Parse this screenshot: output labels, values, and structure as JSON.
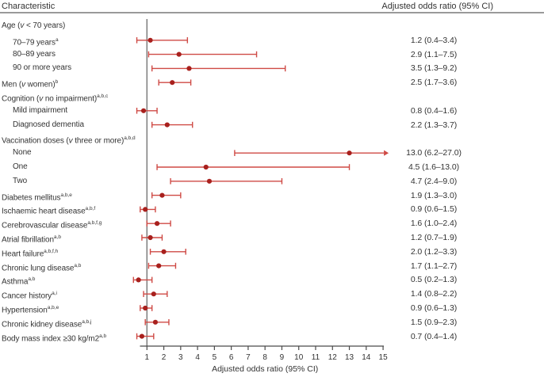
{
  "header": {
    "characteristic_label": "Characteristic",
    "odds_ratio_label": "Adjusted odds ratio (95% CI)"
  },
  "colors": {
    "ci_line": "#cf4a45",
    "point": "#a8201d",
    "reference_line": "#7d7d7d",
    "axis_line": "#4a4a4a",
    "header_rule": "#9a9a9a",
    "text": "#333333"
  },
  "chart_data": {
    "type": "forest",
    "title": "",
    "xlabel": "Adjusted odds ratio (95% CI)",
    "x_ticks": [
      1,
      2,
      3,
      4,
      5,
      6,
      7,
      8,
      9,
      10,
      11,
      12,
      13,
      14,
      15
    ],
    "axis_range": [
      1,
      15
    ],
    "reference_line_x": 1,
    "legend": "none",
    "rows": [
      {
        "label": "Age (v < 70 years)",
        "sup": "",
        "indent": 0,
        "group": true
      },
      {
        "label": "70–79 years",
        "sup": "a",
        "indent": 1,
        "or": 1.2,
        "low": 0.4,
        "high": 3.4,
        "display": "1.2 (0.4–3.4)"
      },
      {
        "label": "80–89 years",
        "sup": "",
        "indent": 1,
        "or": 2.9,
        "low": 1.1,
        "high": 7.5,
        "display": "2.9 (1.1–7.5)"
      },
      {
        "label": "90 or more years",
        "sup": "",
        "indent": 1,
        "or": 3.5,
        "low": 1.3,
        "high": 9.2,
        "display": "3.5 (1.3–9.2)"
      },
      {
        "label": "Men (v women)",
        "sup": "b",
        "indent": 0,
        "or": 2.5,
        "low": 1.7,
        "high": 3.6,
        "display": "2.5 (1.7–3.6)"
      },
      {
        "label": "Cognition (v no impairment)",
        "sup": "a,b,c",
        "indent": 0,
        "group": true
      },
      {
        "label": "Mild impairment",
        "sup": "",
        "indent": 1,
        "or": 0.8,
        "low": 0.4,
        "high": 1.6,
        "display": "0.8 (0.4–1.6)"
      },
      {
        "label": "Diagnosed dementia",
        "sup": "",
        "indent": 1,
        "or": 2.2,
        "low": 1.3,
        "high": 3.7,
        "display": "2.2 (1.3–3.7)"
      },
      {
        "label": "Vaccination doses (v three or more)",
        "sup": "a,b,d",
        "indent": 0,
        "group": true
      },
      {
        "label": "None",
        "sup": "",
        "indent": 1,
        "or": 13.0,
        "low": 6.2,
        "high": 27.0,
        "display": "13.0 (6.2–27.0)"
      },
      {
        "label": "One",
        "sup": "",
        "indent": 1,
        "or": 4.5,
        "low": 1.6,
        "high": 13.0,
        "display": "4.5 (1.6–13.0)"
      },
      {
        "label": "Two",
        "sup": "",
        "indent": 1,
        "or": 4.7,
        "low": 2.4,
        "high": 9.0,
        "display": "4.7 (2.4–9.0)"
      },
      {
        "label": "Diabetes mellitus",
        "sup": "a,b,e",
        "indent": 0,
        "or": 1.9,
        "low": 1.3,
        "high": 3.0,
        "display": "1.9 (1.3–3.0)"
      },
      {
        "label": "Ischaemic heart disease",
        "sup": "a,b,f",
        "indent": 0,
        "or": 0.9,
        "low": 0.6,
        "high": 1.5,
        "display": "0.9 (0.6–1.5)"
      },
      {
        "label": "Cerebrovascular disease",
        "sup": "a,b,f,g",
        "indent": 0,
        "or": 1.6,
        "low": 1.0,
        "high": 2.4,
        "display": "1.6 (1.0–2.4)"
      },
      {
        "label": "Atrial fibrillation",
        "sup": "a,b",
        "indent": 0,
        "or": 1.2,
        "low": 0.7,
        "high": 1.9,
        "display": "1.2 (0.7–1.9)"
      },
      {
        "label": "Heart failure",
        "sup": "a,b,f,h",
        "indent": 0,
        "or": 2.0,
        "low": 1.2,
        "high": 3.3,
        "display": "2.0 (1.2–3.3)"
      },
      {
        "label": "Chronic lung disease",
        "sup": "a,b",
        "indent": 0,
        "or": 1.7,
        "low": 1.1,
        "high": 2.7,
        "display": "1.7 (1.1–2.7)"
      },
      {
        "label": "Asthma",
        "sup": "a,b",
        "indent": 0,
        "or": 0.5,
        "low": 0.2,
        "high": 1.3,
        "display": "0.5 (0.2–1.3)"
      },
      {
        "label": "Cancer history",
        "sup": "a,i",
        "indent": 0,
        "or": 1.4,
        "low": 0.8,
        "high": 2.2,
        "display": "1.4 (0.8–2.2)"
      },
      {
        "label": "Hypertension",
        "sup": "a,b,e",
        "indent": 0,
        "or": 0.9,
        "low": 0.6,
        "high": 1.3,
        "display": "0.9 (0.6–1.3)"
      },
      {
        "label": "Chronic kidney disease",
        "sup": "a,b,j",
        "indent": 0,
        "or": 1.5,
        "low": 0.9,
        "high": 2.3,
        "display": "1.5 (0.9–2.3)"
      },
      {
        "label": "Body mass index ≥30 kg/m2",
        "sup": "a,b",
        "indent": 0,
        "or": 0.7,
        "low": 0.4,
        "high": 1.4,
        "display": "0.7 (0.4–1.4)"
      }
    ]
  }
}
